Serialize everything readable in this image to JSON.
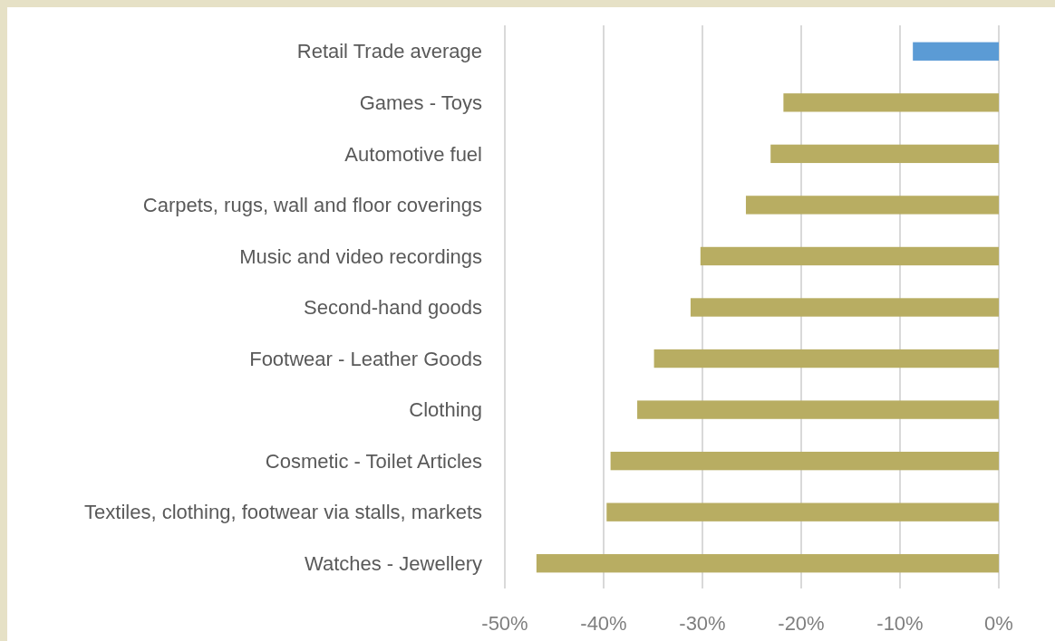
{
  "chart_data": {
    "type": "bar",
    "orientation": "horizontal",
    "categories": [
      "Retail Trade average",
      "Games - Toys",
      "Automotive fuel",
      "Carpets, rugs, wall and floor coverings",
      "Music and video recordings",
      "Second-hand goods",
      "Footwear - Leather Goods",
      "Clothing",
      "Cosmetic - Toilet Articles",
      "Textiles, clothing, footwear via stalls, markets",
      "Watches - Jewellery"
    ],
    "values": [
      -8.7,
      -21.8,
      -23.1,
      -25.6,
      -30.2,
      -31.2,
      -34.9,
      -36.6,
      -39.3,
      -39.7,
      -46.8
    ],
    "colors": [
      "#5b9bd5",
      "#b8ad62",
      "#b8ad62",
      "#b8ad62",
      "#b8ad62",
      "#b8ad62",
      "#b8ad62",
      "#b8ad62",
      "#b8ad62",
      "#b8ad62",
      "#b8ad62"
    ],
    "xlim": [
      -50,
      0
    ],
    "xticks": [
      {
        "value": -50,
        "label": "-50%"
      },
      {
        "value": -40,
        "label": "-40%"
      },
      {
        "value": -30,
        "label": "-30%"
      },
      {
        "value": -20,
        "label": "-20%"
      },
      {
        "value": -10,
        "label": "-10%"
      },
      {
        "value": 0,
        "label": "0%"
      }
    ],
    "grid": "x"
  }
}
